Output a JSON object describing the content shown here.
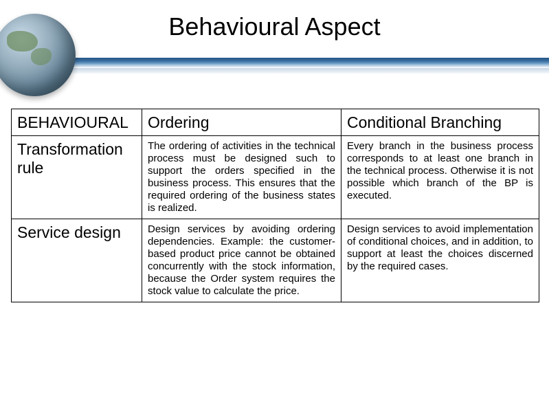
{
  "title": "Behavioural Aspect",
  "table": {
    "head": {
      "c1": "BEHAVIOURAL",
      "c2": "Ordering",
      "c3": "Conditional Branching"
    },
    "rows": [
      {
        "label": "Transformation rule",
        "ordering": "The ordering of activities in the technical process must be designed such to support the orders specified in the business process. This ensures that the required ordering of the business states is realized.",
        "conditional": "Every branch in the business process corresponds to at least one branch in the technical process. Otherwise it is not possible which branch of the BP is executed."
      },
      {
        "label": "Service design",
        "ordering": "Design services by avoiding ordering dependencies. Example: the customer-based product price cannot be obtained concurrently with the stock information, because the Order system requires the stock value to calculate the price.",
        "conditional": "Design services to avoid implementation of conditional choices, and in addition, to support at least the choices discerned by the required cases."
      }
    ]
  },
  "colors": {
    "text": "#000000",
    "background": "#ffffff",
    "divider_top": "#2a5a8a",
    "divider_bottom": "#e8f0f7"
  }
}
